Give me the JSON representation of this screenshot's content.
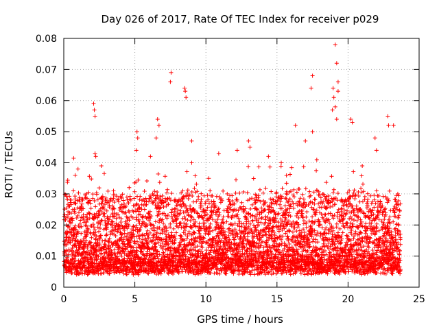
{
  "chart_data": {
    "type": "scatter",
    "title": "Day 026 of 2017, Rate Of TEC Index for receiver p029",
    "xlabel": "GPS time / hours",
    "ylabel": "ROTI / TECUs",
    "xlim": [
      0,
      25
    ],
    "ylim": [
      0,
      0.08
    ],
    "x_ticks": [
      0,
      5,
      10,
      15,
      20,
      25
    ],
    "y_ticks": [
      0,
      0.01,
      0.02,
      0.03,
      0.04,
      0.05,
      0.06,
      0.07,
      0.08
    ],
    "x_tick_labels": [
      "0",
      "5",
      "10",
      "15",
      "20",
      "25"
    ],
    "y_tick_labels": [
      "0",
      "0.01",
      "0.02",
      "0.03",
      "0.04",
      "0.05",
      "0.06",
      "0.07",
      "0.08"
    ],
    "grid": true,
    "marker": "+",
    "color": "#ff0000",
    "series": [
      {
        "name": "ROTI",
        "summary": "dense band mostly between 0.004 and 0.02 TECU from 0 to 23.7 h, occasional spikes",
        "points": [
          [
            2.1,
            0.059
          ],
          [
            2.15,
            0.057
          ],
          [
            2.2,
            0.055
          ],
          [
            2.2,
            0.043
          ],
          [
            2.25,
            0.042
          ],
          [
            5.15,
            0.05
          ],
          [
            5.2,
            0.048
          ],
          [
            5.1,
            0.044
          ],
          [
            6.6,
            0.054
          ],
          [
            6.7,
            0.052
          ],
          [
            6.5,
            0.048
          ],
          [
            7.55,
            0.069
          ],
          [
            7.5,
            0.066
          ],
          [
            8.5,
            0.064
          ],
          [
            8.55,
            0.063
          ],
          [
            8.6,
            0.061
          ],
          [
            9.0,
            0.047
          ],
          [
            9.0,
            0.04
          ],
          [
            13.0,
            0.047
          ],
          [
            13.1,
            0.045
          ],
          [
            16.3,
            0.052
          ],
          [
            17.5,
            0.068
          ],
          [
            17.4,
            0.064
          ],
          [
            17.5,
            0.05
          ],
          [
            17.0,
            0.047
          ],
          [
            18.95,
            0.064
          ],
          [
            19.0,
            0.061
          ],
          [
            19.1,
            0.078
          ],
          [
            19.2,
            0.072
          ],
          [
            19.3,
            0.066
          ],
          [
            19.3,
            0.063
          ],
          [
            19.1,
            0.058
          ],
          [
            18.9,
            0.057
          ],
          [
            19.2,
            0.054
          ],
          [
            20.2,
            0.054
          ],
          [
            20.3,
            0.053
          ],
          [
            22.8,
            0.055
          ],
          [
            22.85,
            0.052
          ],
          [
            23.2,
            0.052
          ],
          [
            21.9,
            0.048
          ],
          [
            22.0,
            0.044
          ],
          [
            12.2,
            0.044
          ],
          [
            10.9,
            0.043
          ],
          [
            14.4,
            0.042
          ],
          [
            6.1,
            0.042
          ],
          [
            3.5,
            0.031
          ],
          [
            1.0,
            0.038
          ],
          [
            0.8,
            0.036
          ],
          [
            4.6,
            0.032
          ],
          [
            15.3,
            0.04
          ],
          [
            11.5,
            0.03
          ],
          [
            10.2,
            0.035
          ],
          [
            17.8,
            0.041
          ],
          [
            21.0,
            0.039
          ],
          [
            23.5,
            0.03
          ]
        ]
      }
    ]
  }
}
